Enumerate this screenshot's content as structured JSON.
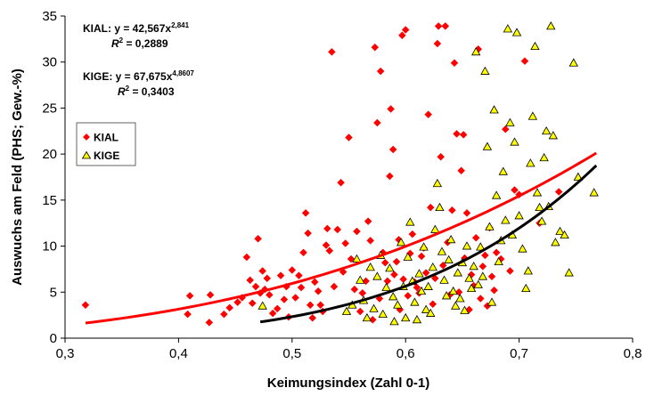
{
  "chart_data": {
    "type": "scatter",
    "xlabel": "Keimungsindex (Zahl 0-1)",
    "ylabel": "Auswuchs am Feld (PHS; Gew.-%)",
    "xlim": [
      0.3,
      0.8
    ],
    "ylim": [
      0,
      35
    ],
    "x_ticks": [
      "0,3",
      "0,4",
      "0,5",
      "0,6",
      "0,7",
      "0,8"
    ],
    "y_ticks": [
      "0",
      "5",
      "10",
      "15",
      "20",
      "25",
      "30",
      "35"
    ],
    "grid": false,
    "legend_position": "left",
    "series": [
      {
        "name": "KIAL",
        "color": "#ff0000",
        "marker": "diamond",
        "equation": {
          "text": "KIAL: y = 42,567x",
          "exponent": "2,841",
          "r2_label": "R",
          "r2_sup": "2",
          "r2_value": " = 0,2889"
        },
        "trendline": {
          "a": 42.567,
          "b": 2.841,
          "x_from": 0.318,
          "x_to": 0.768,
          "color": "#ff0000"
        },
        "points": [
          [
            0.318,
            3.6
          ],
          [
            0.408,
            2.6
          ],
          [
            0.41,
            4.6
          ],
          [
            0.427,
            1.7
          ],
          [
            0.428,
            4.7
          ],
          [
            0.44,
            2.6
          ],
          [
            0.445,
            3.3
          ],
          [
            0.452,
            3.9
          ],
          [
            0.456,
            4.4
          ],
          [
            0.46,
            8.8
          ],
          [
            0.463,
            6.3
          ],
          [
            0.465,
            3.8
          ],
          [
            0.468,
            5.6
          ],
          [
            0.47,
            10.8
          ],
          [
            0.472,
            4.9
          ],
          [
            0.474,
            7.3
          ],
          [
            0.476,
            5.3
          ],
          [
            0.478,
            6.5
          ],
          [
            0.48,
            4.7
          ],
          [
            0.483,
            2.7
          ],
          [
            0.487,
            3.2
          ],
          [
            0.49,
            6.8
          ],
          [
            0.493,
            4.2
          ],
          [
            0.495,
            5.6
          ],
          [
            0.497,
            2.3
          ],
          [
            0.5,
            7.4
          ],
          [
            0.503,
            4.4
          ],
          [
            0.506,
            6.8
          ],
          [
            0.508,
            5.5
          ],
          [
            0.51,
            9.3
          ],
          [
            0.512,
            13.6
          ],
          [
            0.514,
            11.4
          ],
          [
            0.516,
            3.6
          ],
          [
            0.518,
            2.2
          ],
          [
            0.52,
            6.1
          ],
          [
            0.523,
            5.1
          ],
          [
            0.525,
            3.6
          ],
          [
            0.527,
            2.9
          ],
          [
            0.53,
            10.1
          ],
          [
            0.531,
            11.9
          ],
          [
            0.533,
            9.5
          ],
          [
            0.535,
            31.1
          ],
          [
            0.537,
            5.6
          ],
          [
            0.54,
            11.8
          ],
          [
            0.543,
            16.9
          ],
          [
            0.545,
            7.2
          ],
          [
            0.547,
            10.3
          ],
          [
            0.55,
            21.8
          ],
          [
            0.552,
            8.6
          ],
          [
            0.555,
            5.3
          ],
          [
            0.557,
            11.6
          ],
          [
            0.56,
            2.9
          ],
          [
            0.562,
            4.9
          ],
          [
            0.565,
            6.2
          ],
          [
            0.567,
            12.7
          ],
          [
            0.569,
            10.6
          ],
          [
            0.571,
            2.0
          ],
          [
            0.573,
            31.6
          ],
          [
            0.575,
            23.4
          ],
          [
            0.577,
            4.3
          ],
          [
            0.578,
            29.0
          ],
          [
            0.58,
            9.3
          ],
          [
            0.582,
            8.2
          ],
          [
            0.584,
            6.2
          ],
          [
            0.586,
            17.6
          ],
          [
            0.587,
            24.9
          ],
          [
            0.589,
            20.5
          ],
          [
            0.59,
            6.9
          ],
          [
            0.592,
            8.3
          ],
          [
            0.594,
            10.7
          ],
          [
            0.595,
            3.1
          ],
          [
            0.597,
            32.9
          ],
          [
            0.598,
            6.4
          ],
          [
            0.6,
            33.5
          ],
          [
            0.602,
            4.6
          ],
          [
            0.604,
            9.2
          ],
          [
            0.606,
            11.3
          ],
          [
            0.608,
            6.1
          ],
          [
            0.61,
            5.5
          ],
          [
            0.612,
            4.9
          ],
          [
            0.614,
            8.9
          ],
          [
            0.616,
            9.8
          ],
          [
            0.618,
            7.1
          ],
          [
            0.62,
            24.3
          ],
          [
            0.622,
            14.2
          ],
          [
            0.624,
            3.7
          ],
          [
            0.626,
            6.5
          ],
          [
            0.628,
            32.0
          ],
          [
            0.629,
            33.9
          ],
          [
            0.631,
            19.7
          ],
          [
            0.633,
            7.9
          ],
          [
            0.635,
            33.9
          ],
          [
            0.637,
            10.4
          ],
          [
            0.639,
            4.7
          ],
          [
            0.641,
            13.9
          ],
          [
            0.643,
            29.9
          ],
          [
            0.645,
            22.2
          ],
          [
            0.647,
            5.0
          ],
          [
            0.649,
            18.2
          ],
          [
            0.651,
            22.1
          ],
          [
            0.652,
            8.7
          ],
          [
            0.654,
            13.6
          ],
          [
            0.656,
            3.1
          ],
          [
            0.658,
            6.9
          ],
          [
            0.66,
            5.7
          ],
          [
            0.662,
            10.9
          ],
          [
            0.664,
            31.4
          ],
          [
            0.666,
            4.3
          ],
          [
            0.668,
            7.8
          ],
          [
            0.67,
            9.0
          ],
          [
            0.672,
            3.5
          ],
          [
            0.674,
            12.0
          ],
          [
            0.676,
            6.7
          ],
          [
            0.678,
            5.2
          ],
          [
            0.68,
            9.3
          ],
          [
            0.684,
            8.6
          ],
          [
            0.688,
            22.7
          ],
          [
            0.692,
            7.3
          ],
          [
            0.696,
            16.1
          ],
          [
            0.7,
            15.6
          ],
          [
            0.705,
            30.1
          ],
          [
            0.718,
            12.5
          ],
          [
            0.735,
            15.9
          ]
        ]
      },
      {
        "name": "KIGE",
        "color": "#ffff00",
        "marker": "triangle",
        "equation": {
          "text": "KIGE: y = 67,675x",
          "exponent": "4,8607",
          "r2_label": "R",
          "r2_sup": "2",
          "r2_value": " = 0,3403"
        },
        "trendline": {
          "a": 67.675,
          "b": 4.8607,
          "x_from": 0.472,
          "x_to": 0.768,
          "color": "#000000"
        },
        "points": [
          [
            0.474,
            3.5
          ],
          [
            0.548,
            2.9
          ],
          [
            0.553,
            3.6
          ],
          [
            0.557,
            8.6
          ],
          [
            0.56,
            6.3
          ],
          [
            0.563,
            4.1
          ],
          [
            0.566,
            2.2
          ],
          [
            0.569,
            7.7
          ],
          [
            0.572,
            3.2
          ],
          [
            0.575,
            6.7
          ],
          [
            0.578,
            9.0
          ],
          [
            0.58,
            2.6
          ],
          [
            0.583,
            5.5
          ],
          [
            0.586,
            7.6
          ],
          [
            0.589,
            4.5
          ],
          [
            0.59,
            1.8
          ],
          [
            0.593,
            3.6
          ],
          [
            0.596,
            10.4
          ],
          [
            0.598,
            5.6
          ],
          [
            0.6,
            2.2
          ],
          [
            0.602,
            8.8
          ],
          [
            0.604,
            12.6
          ],
          [
            0.606,
            6.2
          ],
          [
            0.608,
            3.9
          ],
          [
            0.61,
            2.0
          ],
          [
            0.612,
            7.0
          ],
          [
            0.614,
            5.1
          ],
          [
            0.616,
            9.9
          ],
          [
            0.618,
            3.1
          ],
          [
            0.62,
            5.6
          ],
          [
            0.622,
            2.7
          ],
          [
            0.624,
            7.7
          ],
          [
            0.626,
            11.8
          ],
          [
            0.628,
            16.8
          ],
          [
            0.63,
            14.2
          ],
          [
            0.632,
            9.4
          ],
          [
            0.634,
            6.3
          ],
          [
            0.636,
            4.6
          ],
          [
            0.638,
            8.5
          ],
          [
            0.64,
            10.7
          ],
          [
            0.642,
            5.1
          ],
          [
            0.644,
            3.5
          ],
          [
            0.646,
            7.1
          ],
          [
            0.648,
            4.3
          ],
          [
            0.65,
            8.2
          ],
          [
            0.652,
            3.0
          ],
          [
            0.654,
            10.0
          ],
          [
            0.656,
            6.5
          ],
          [
            0.658,
            5.4
          ],
          [
            0.66,
            7.8
          ],
          [
            0.662,
            31.1
          ],
          [
            0.664,
            5.8
          ],
          [
            0.666,
            9.9
          ],
          [
            0.668,
            6.7
          ],
          [
            0.67,
            29.0
          ],
          [
            0.672,
            20.8
          ],
          [
            0.674,
            12.1
          ],
          [
            0.676,
            3.9
          ],
          [
            0.678,
            24.8
          ],
          [
            0.68,
            15.5
          ],
          [
            0.682,
            8.3
          ],
          [
            0.684,
            10.6
          ],
          [
            0.686,
            18.1
          ],
          [
            0.688,
            12.8
          ],
          [
            0.69,
            33.6
          ],
          [
            0.692,
            23.4
          ],
          [
            0.694,
            11.2
          ],
          [
            0.696,
            21.3
          ],
          [
            0.698,
            33.2
          ],
          [
            0.7,
            13.3
          ],
          [
            0.703,
            9.7
          ],
          [
            0.706,
            5.4
          ],
          [
            0.708,
            7.3
          ],
          [
            0.71,
            19.0
          ],
          [
            0.712,
            24.1
          ],
          [
            0.714,
            31.7
          ],
          [
            0.716,
            15.8
          ],
          [
            0.718,
            14.2
          ],
          [
            0.72,
            12.7
          ],
          [
            0.722,
            19.6
          ],
          [
            0.724,
            22.5
          ],
          [
            0.726,
            14.3
          ],
          [
            0.728,
            33.9
          ],
          [
            0.73,
            22.0
          ],
          [
            0.732,
            10.4
          ],
          [
            0.736,
            11.6
          ],
          [
            0.74,
            11.2
          ],
          [
            0.744,
            7.1
          ],
          [
            0.748,
            29.9
          ],
          [
            0.752,
            17.5
          ],
          [
            0.766,
            15.8
          ]
        ]
      }
    ]
  }
}
